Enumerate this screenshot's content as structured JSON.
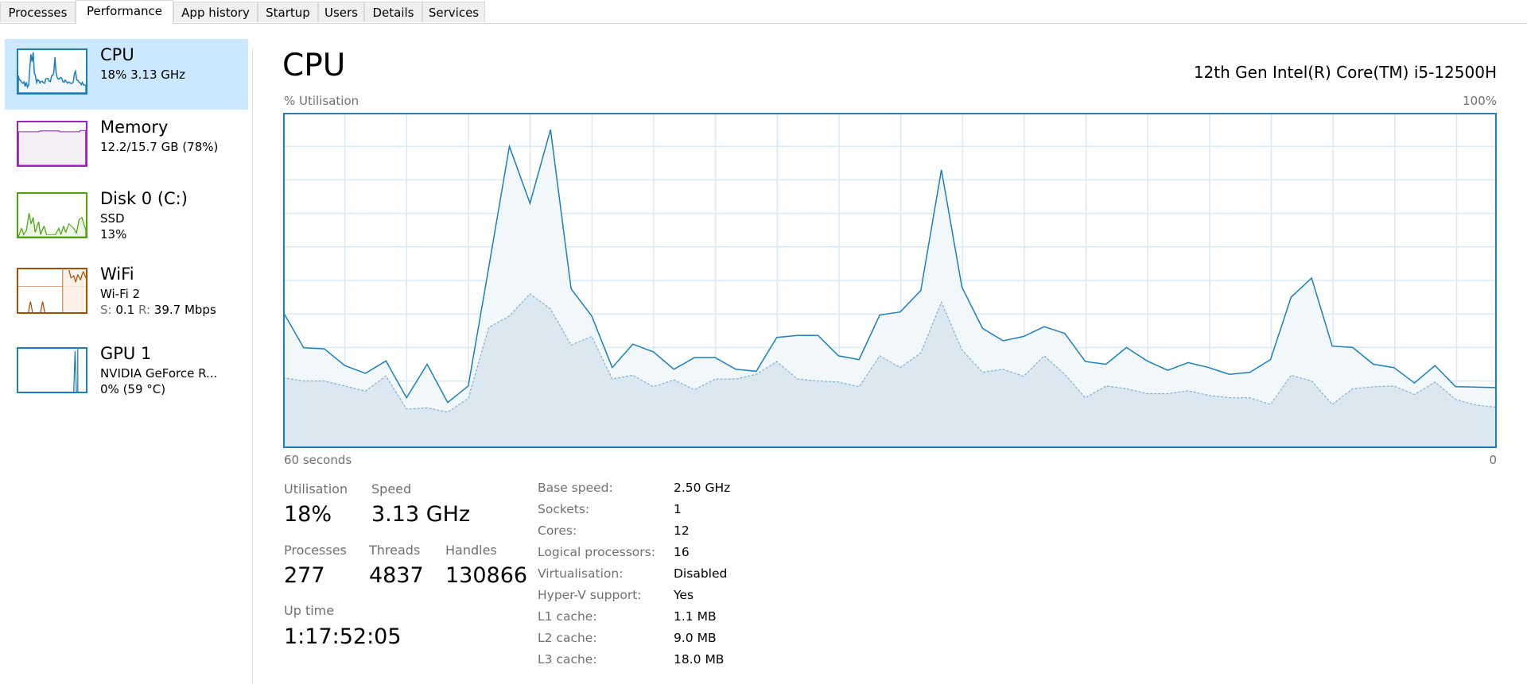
{
  "tabs": [
    "Processes",
    "Performance",
    "App history",
    "Startup",
    "Users",
    "Details",
    "Services"
  ],
  "active_tab": "Performance",
  "sidebar": {
    "items": [
      {
        "title": "CPU",
        "line1": "18% 3.13 GHz",
        "color": "#1a7fbb",
        "selected": true
      },
      {
        "title": "Memory",
        "line1": "12.2/15.7 GB (78%)",
        "color": "#9528b4"
      },
      {
        "title": "Disk 0 (C:)",
        "line1": "SSD",
        "line2": "13%",
        "color": "#4da60c"
      },
      {
        "title": "WiFi",
        "line1": "Wi-Fi 2",
        "line2_s_label": "S:",
        "line2_s": "0.1",
        "line2_r_label": "R:",
        "line2_r": "39.7 Mbps",
        "color": "#a74f01"
      },
      {
        "title": "GPU 1",
        "line1": "NVIDIA GeForce R...",
        "line2": "0%  (59 °C)",
        "color": "#1a7fbb"
      }
    ]
  },
  "main": {
    "title": "CPU",
    "model": "12th Gen Intel(R) Core(TM) i5-12500H",
    "y_label": "% Utilisation",
    "y_max_label": "100%",
    "x_left_label": "60 seconds",
    "x_right_label": "0"
  },
  "chart_data": {
    "type": "area",
    "ylim": [
      0,
      100
    ],
    "xlim": [
      60,
      0
    ],
    "grid": true,
    "colors": {
      "line": "#1a7fbb",
      "fill": "#f1f6fa",
      "kernel_fill": "#d7e5ef",
      "grid": "#d9eaf7"
    },
    "series": [
      {
        "values": [
          40.6,
          29.9,
          29.6,
          24.6,
          22.3,
          26,
          15,
          25,
          13.6,
          18.5,
          54,
          90,
          73,
          95,
          47.5,
          39.4,
          24,
          31,
          28.7,
          23.5,
          27,
          27,
          23.5,
          22.9,
          33,
          33.6,
          33.6,
          27.5,
          26.4,
          39.7,
          40.6,
          47,
          83,
          48,
          35.7,
          32,
          33.3,
          36.2,
          34.2,
          25.8,
          25,
          30,
          26,
          23.2,
          25.5,
          24,
          22,
          22.6,
          26.4,
          45,
          50.7,
          30.4,
          30,
          25,
          24,
          19.4,
          24.6,
          18.3,
          18.2,
          18
        ]
      },
      {
        "style": "dashed",
        "values": [
          21,
          20,
          20,
          18.5,
          17,
          21.5,
          11.6,
          12,
          10.7,
          14.8,
          36,
          39.4,
          46,
          41.5,
          30.7,
          33.3,
          20.6,
          21.7,
          18.3,
          20.3,
          17.4,
          20.6,
          20.6,
          22,
          25.8,
          20.6,
          20,
          19.7,
          18.3,
          27.5,
          24,
          28.4,
          43.5,
          29.3,
          22.6,
          23.5,
          21.4,
          27.5,
          22,
          15,
          18.5,
          17.7,
          16.2,
          16.2,
          17.1,
          15.7,
          15,
          15,
          13,
          21.7,
          20,
          13,
          17.7,
          18.3,
          18.5,
          16,
          19.7,
          14.5,
          12.8,
          12.2
        ]
      }
    ]
  },
  "stats": {
    "utilisation_label": "Utilisation",
    "utilisation": "18%",
    "speed_label": "Speed",
    "speed": "3.13 GHz",
    "processes_label": "Processes",
    "processes": "277",
    "threads_label": "Threads",
    "threads": "4837",
    "handles_label": "Handles",
    "handles": "130866",
    "uptime_label": "Up time",
    "uptime": "1:17:52:05"
  },
  "details": [
    {
      "label": "Base speed:",
      "value": "2.50 GHz"
    },
    {
      "label": "Sockets:",
      "value": "1"
    },
    {
      "label": "Cores:",
      "value": "12"
    },
    {
      "label": "Logical processors:",
      "value": "16"
    },
    {
      "label": "Virtualisation:",
      "value": "Disabled"
    },
    {
      "label": "Hyper-V support:",
      "value": "Yes"
    },
    {
      "label": "L1 cache:",
      "value": "1.1 MB"
    },
    {
      "label": "L2 cache:",
      "value": "9.0 MB"
    },
    {
      "label": "L3 cache:",
      "value": "18.0 MB"
    }
  ]
}
